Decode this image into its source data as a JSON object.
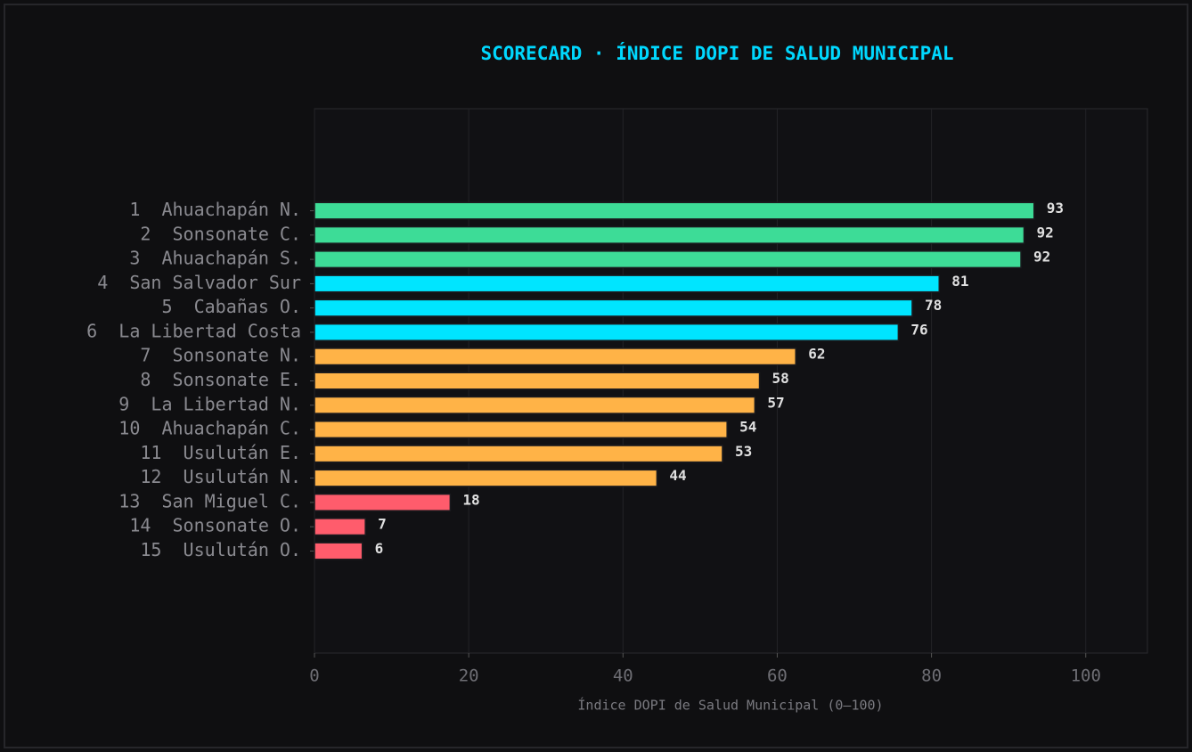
{
  "chart_data": {
    "type": "barh",
    "title": "SCORECARD · ÍNDICE DOPI DE SALUD MUNICIPAL",
    "xlabel": "Índice DOPI de Salud Municipal (0–100)",
    "categories": [
      "1  Ahuachapán N.",
      "2  Sonsonate C.",
      "3  Ahuachapán S.",
      "4  San Salvador Sur",
      "5  Cabañas O.",
      "6  La Libertad Costa",
      "7  Sonsonate N.",
      "8  Sonsonate E.",
      "9  La Libertad N.",
      "10  Ahuachapán C.",
      "11  Usulután E.",
      "12  Usulután N.",
      "13  San Miguel C.",
      "14  Sonsonate O.",
      "15  Usulután O."
    ],
    "values": [
      93.3,
      92.0,
      91.6,
      81.0,
      77.5,
      75.7,
      62.4,
      57.7,
      57.1,
      53.5,
      52.9,
      44.4,
      17.6,
      6.6,
      6.2
    ],
    "value_labels": [
      "93",
      "92",
      "92",
      "81",
      "78",
      "76",
      "62",
      "58",
      "57",
      "54",
      "53",
      "44",
      "18",
      "7",
      "6"
    ],
    "colors": [
      "#3ddc97",
      "#3ddc97",
      "#3ddc97",
      "#00e5ff",
      "#00e5ff",
      "#00e5ff",
      "#ffb347",
      "#ffb347",
      "#ffb347",
      "#ffb347",
      "#ffb347",
      "#ffb347",
      "#ff5c6c",
      "#ff5c6c",
      "#ff5c6c"
    ],
    "xlim": [
      0,
      108
    ],
    "xticks": [
      0,
      20,
      40,
      60,
      80,
      100
    ],
    "grid": true
  }
}
